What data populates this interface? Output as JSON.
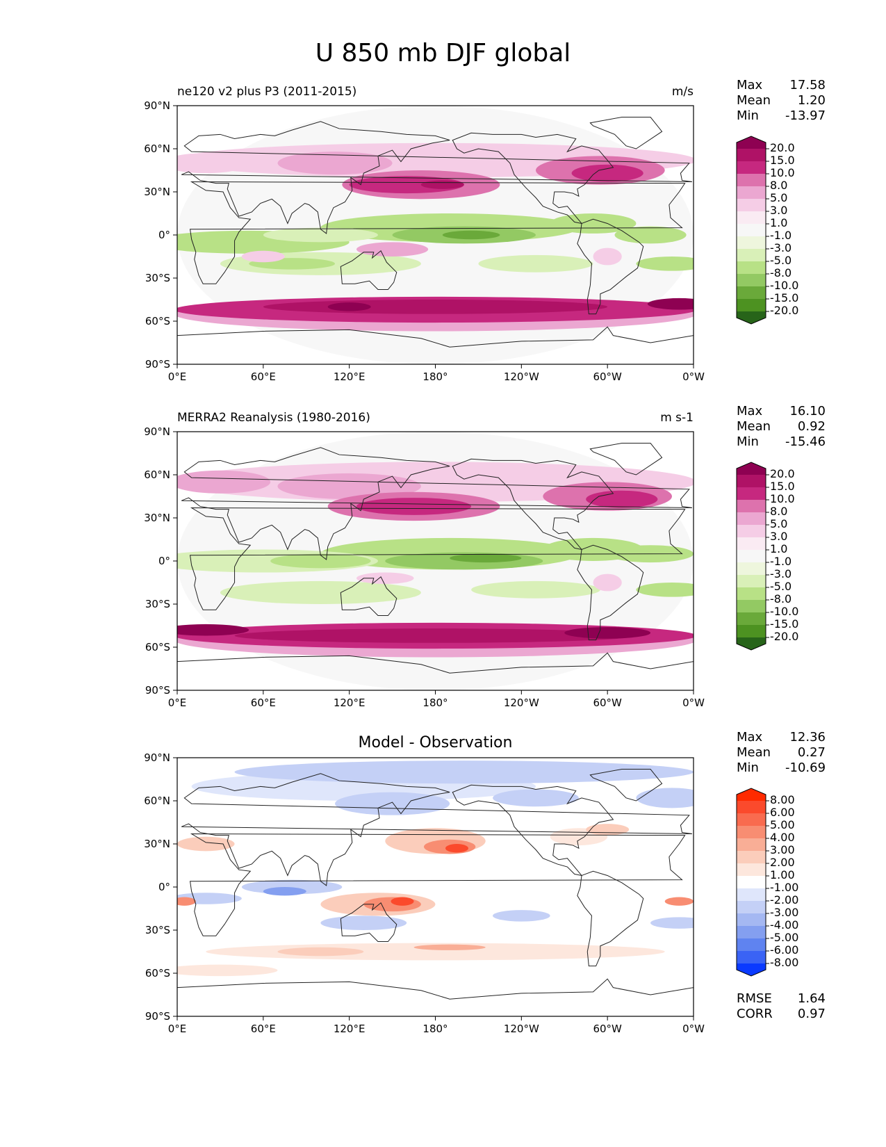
{
  "figure": {
    "title": "U 850 mb DJF global"
  },
  "axes": {
    "lat_ticks": [
      "90°N",
      "60°N",
      "30°N",
      "0°",
      "30°S",
      "60°S",
      "90°S"
    ],
    "lon_ticks": [
      "0°E",
      "60°E",
      "120°E",
      "180°",
      "120°W",
      "60°W",
      "0°W"
    ]
  },
  "panels": [
    {
      "left_title": "ne120 v2 plus P3 (2011-2015)",
      "center_title": "",
      "units": "m/s",
      "stats": {
        "max_label": "Max",
        "max": "17.58",
        "mean_label": "Mean",
        "mean": "1.20",
        "min_label": "Min",
        "min": "-13.97"
      },
      "colorbar": {
        "levels": [
          "20.0",
          "15.0",
          "10.0",
          "8.0",
          "5.0",
          "3.0",
          "1.0",
          "-1.0",
          "-3.0",
          "-5.0",
          "-8.0",
          "-10.0",
          "-15.0",
          "-20.0"
        ],
        "colors": [
          "#8e0152",
          "#af1266",
          "#c6287f",
          "#dd72ad",
          "#eba7d1",
          "#f5cde6",
          "#faebf3",
          "#f7f7f7",
          "#eef6dd",
          "#d9f0b8",
          "#b8e186",
          "#93c963",
          "#6aa93a",
          "#4d9221",
          "#276419"
        ]
      }
    },
    {
      "left_title": "MERRA2 Reanalysis (1980-2016)",
      "center_title": "",
      "units": "m s-1",
      "stats": {
        "max_label": "Max",
        "max": "16.10",
        "mean_label": "Mean",
        "mean": "0.92",
        "min_label": "Min",
        "min": "-15.46"
      },
      "colorbar": {
        "levels": [
          "20.0",
          "15.0",
          "10.0",
          "8.0",
          "5.0",
          "3.0",
          "1.0",
          "-1.0",
          "-3.0",
          "-5.0",
          "-8.0",
          "-10.0",
          "-15.0",
          "-20.0"
        ],
        "colors": [
          "#8e0152",
          "#af1266",
          "#c6287f",
          "#dd72ad",
          "#eba7d1",
          "#f5cde6",
          "#faebf3",
          "#f7f7f7",
          "#eef6dd",
          "#d9f0b8",
          "#b8e186",
          "#93c963",
          "#6aa93a",
          "#4d9221",
          "#276419"
        ]
      }
    },
    {
      "left_title": "",
      "center_title": "Model - Observation",
      "units": "",
      "stats": {
        "max_label": "Max",
        "max": "12.36",
        "mean_label": "Mean",
        "mean": "0.27",
        "min_label": "Min",
        "min": "-10.69"
      },
      "colorbar": {
        "levels": [
          "8.00",
          "6.00",
          "5.00",
          "4.00",
          "3.00",
          "2.00",
          "1.00",
          "-1.00",
          "-2.00",
          "-3.00",
          "-4.00",
          "-5.00",
          "-6.00",
          "-8.00"
        ],
        "colors": [
          "#ff2a00",
          "#fb4a2c",
          "#f96b4f",
          "#f88d72",
          "#f9ae96",
          "#fbcdbb",
          "#fde7dd",
          "#ffffff",
          "#dfe6fb",
          "#c4d0f6",
          "#a5b8f2",
          "#849ff0",
          "#5f83f0",
          "#3a63f5",
          "#0a3aff"
        ]
      },
      "extra": {
        "rmse_label": "RMSE",
        "rmse": "1.64",
        "corr_label": "CORR",
        "corr": "0.97"
      }
    }
  ]
}
